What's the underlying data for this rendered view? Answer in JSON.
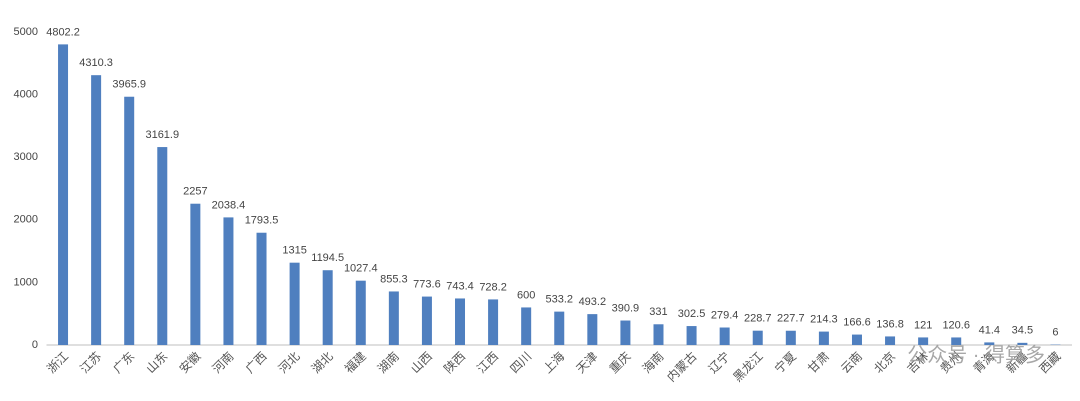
{
  "chart_data": {
    "type": "bar",
    "categories": [
      "浙江",
      "江苏",
      "广东",
      "山东",
      "安徽",
      "河南",
      "广西",
      "河北",
      "湖北",
      "福建",
      "湖南",
      "山西",
      "陕西",
      "江西",
      "四川",
      "上海",
      "天津",
      "重庆",
      "海南",
      "内蒙古",
      "辽宁",
      "黑龙江",
      "宁夏",
      "甘肃",
      "云南",
      "北京",
      "吉林",
      "贵州",
      "青海",
      "新疆",
      "西藏"
    ],
    "values": [
      4802.2,
      4310.3,
      3965.9,
      3161.9,
      2257,
      2038.4,
      1793.5,
      1315,
      1194.5,
      1027.4,
      855.3,
      773.6,
      743.4,
      728.2,
      600,
      533.2,
      493.2,
      390.9,
      331,
      302.5,
      279.4,
      228.7,
      227.7,
      214.3,
      166.6,
      136.8,
      121,
      120.6,
      41.4,
      34.5,
      6
    ],
    "color": "#4f7fbf",
    "ylim": [
      0,
      5000
    ],
    "yticks": [
      0,
      1000,
      2000,
      3000,
      4000,
      5000
    ],
    "grid": false,
    "watermark": "公众号 · 得算多"
  }
}
